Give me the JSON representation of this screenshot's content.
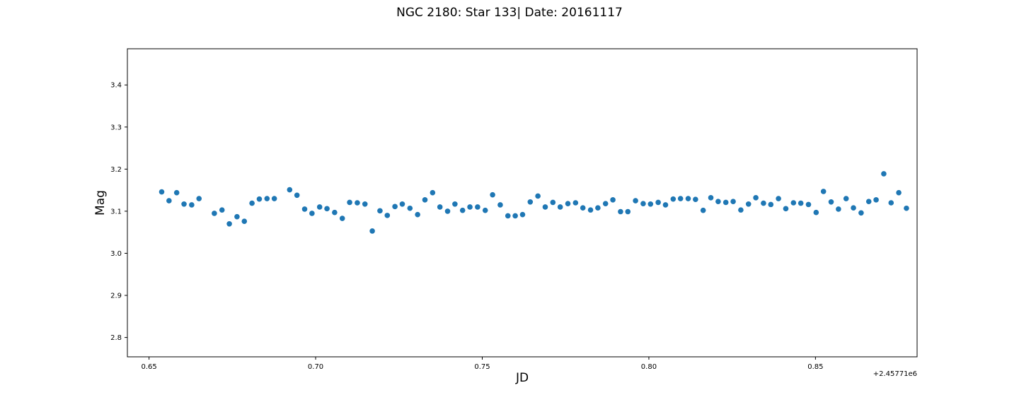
{
  "chart_data": {
    "type": "scatter",
    "title": "NGC 2180: Star 133| Date: 20161117",
    "xlabel": "JD",
    "ylabel": "Mag",
    "x_offset_label": "+2.45771e6",
    "xlim": [
      0.6435,
      0.8805
    ],
    "ylim": [
      2.754,
      3.486
    ],
    "x_ticks": [
      0.65,
      0.7,
      0.75,
      0.8,
      0.85
    ],
    "x_tick_labels": [
      "0.65",
      "0.70",
      "0.75",
      "0.80",
      "0.85"
    ],
    "y_ticks": [
      2.8,
      2.9,
      3.0,
      3.1,
      3.2,
      3.3,
      3.4
    ],
    "y_tick_labels": [
      "2.8",
      "2.9",
      "3.0",
      "3.1",
      "3.2",
      "3.3",
      "3.4"
    ],
    "grid": false,
    "marker_color": "#1f77b4",
    "series": [
      {
        "x": [
          0.6538,
          0.656,
          0.6583,
          0.6605,
          0.6628,
          0.665,
          0.6696,
          0.6719,
          0.6741,
          0.6764,
          0.6786,
          0.6809,
          0.6831,
          0.6854,
          0.6876,
          0.6922,
          0.6944,
          0.6967,
          0.6989,
          0.7012,
          0.7034,
          0.7057,
          0.708,
          0.7102,
          0.7125,
          0.7148,
          0.717,
          0.7193,
          0.7215,
          0.7238,
          0.726,
          0.7283,
          0.7306,
          0.7328,
          0.7351,
          0.7373,
          0.7396,
          0.7418,
          0.7441,
          0.7463,
          0.7486,
          0.7509,
          0.7531,
          0.7554,
          0.7577,
          0.7599,
          0.7621,
          0.7644,
          0.7667,
          0.7689,
          0.7712,
          0.7734,
          0.7757,
          0.778,
          0.7802,
          0.7825,
          0.7847,
          0.787,
          0.7892,
          0.7915,
          0.7937,
          0.796,
          0.7983,
          0.8005,
          0.8028,
          0.805,
          0.8073,
          0.8095,
          0.8118,
          0.814,
          0.8163,
          0.8186,
          0.8208,
          0.8231,
          0.8253,
          0.8276,
          0.8299,
          0.8321,
          0.8344,
          0.8366,
          0.8389,
          0.8411,
          0.8434,
          0.8456,
          0.8479,
          0.8502,
          0.8524,
          0.8547,
          0.8569,
          0.8592,
          0.8614,
          0.8637,
          0.866,
          0.8682,
          0.8705,
          0.8727,
          0.875,
          0.8773
        ],
        "y": [
          3.146,
          3.125,
          3.144,
          3.117,
          3.115,
          3.13,
          3.095,
          3.103,
          3.07,
          3.087,
          3.076,
          3.119,
          3.129,
          3.13,
          3.13,
          3.151,
          3.138,
          3.105,
          3.095,
          3.11,
          3.106,
          3.097,
          3.083,
          3.121,
          3.12,
          3.117,
          3.053,
          3.101,
          3.09,
          3.111,
          3.117,
          3.107,
          3.092,
          3.127,
          3.144,
          3.11,
          3.1,
          3.117,
          3.102,
          3.11,
          3.11,
          3.102,
          3.139,
          3.115,
          3.089,
          3.089,
          3.092,
          3.122,
          3.136,
          3.11,
          3.121,
          3.11,
          3.118,
          3.12,
          3.108,
          3.103,
          3.108,
          3.118,
          3.127,
          3.099,
          3.099,
          3.125,
          3.118,
          3.117,
          3.121,
          3.115,
          3.129,
          3.13,
          3.13,
          3.128,
          3.102,
          3.132,
          3.123,
          3.121,
          3.123,
          3.103,
          3.117,
          3.132,
          3.119,
          3.116,
          3.13,
          3.106,
          3.12,
          3.119,
          3.116,
          3.097,
          3.147,
          3.122,
          3.105,
          3.13,
          3.108,
          3.096,
          3.123,
          3.127,
          3.189,
          3.12,
          3.144,
          3.107
        ]
      }
    ]
  }
}
